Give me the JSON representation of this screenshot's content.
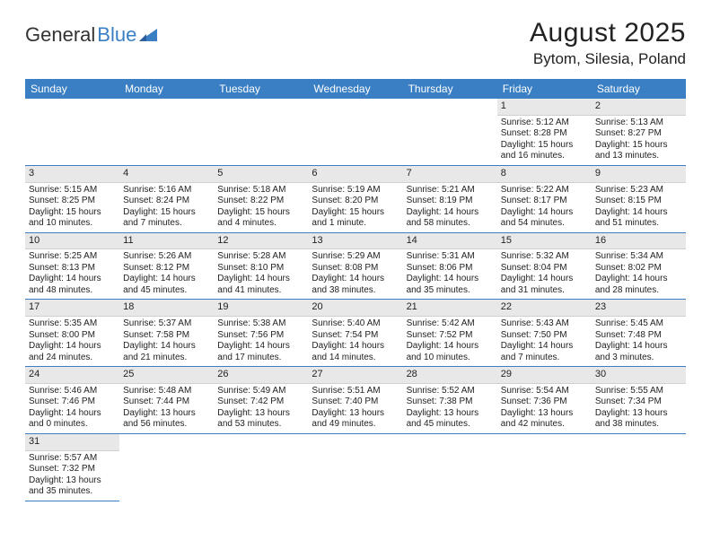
{
  "logo": {
    "general": "General",
    "blue": "Blue"
  },
  "title": "August 2025",
  "subtitle": "Bytom, Silesia, Poland",
  "dayNames": [
    "Sunday",
    "Monday",
    "Tuesday",
    "Wednesday",
    "Thursday",
    "Friday",
    "Saturday"
  ],
  "colors": {
    "headerBar": "#3a7fc4",
    "daynumBg": "#e8e8e8",
    "rowBorder": "#3a7fc4"
  },
  "weeks": [
    [
      null,
      null,
      null,
      null,
      null,
      {
        "n": "1",
        "sr": "Sunrise: 5:12 AM",
        "ss": "Sunset: 8:28 PM",
        "d1": "Daylight: 15 hours",
        "d2": "and 16 minutes."
      },
      {
        "n": "2",
        "sr": "Sunrise: 5:13 AM",
        "ss": "Sunset: 8:27 PM",
        "d1": "Daylight: 15 hours",
        "d2": "and 13 minutes."
      }
    ],
    [
      {
        "n": "3",
        "sr": "Sunrise: 5:15 AM",
        "ss": "Sunset: 8:25 PM",
        "d1": "Daylight: 15 hours",
        "d2": "and 10 minutes."
      },
      {
        "n": "4",
        "sr": "Sunrise: 5:16 AM",
        "ss": "Sunset: 8:24 PM",
        "d1": "Daylight: 15 hours",
        "d2": "and 7 minutes."
      },
      {
        "n": "5",
        "sr": "Sunrise: 5:18 AM",
        "ss": "Sunset: 8:22 PM",
        "d1": "Daylight: 15 hours",
        "d2": "and 4 minutes."
      },
      {
        "n": "6",
        "sr": "Sunrise: 5:19 AM",
        "ss": "Sunset: 8:20 PM",
        "d1": "Daylight: 15 hours",
        "d2": "and 1 minute."
      },
      {
        "n": "7",
        "sr": "Sunrise: 5:21 AM",
        "ss": "Sunset: 8:19 PM",
        "d1": "Daylight: 14 hours",
        "d2": "and 58 minutes."
      },
      {
        "n": "8",
        "sr": "Sunrise: 5:22 AM",
        "ss": "Sunset: 8:17 PM",
        "d1": "Daylight: 14 hours",
        "d2": "and 54 minutes."
      },
      {
        "n": "9",
        "sr": "Sunrise: 5:23 AM",
        "ss": "Sunset: 8:15 PM",
        "d1": "Daylight: 14 hours",
        "d2": "and 51 minutes."
      }
    ],
    [
      {
        "n": "10",
        "sr": "Sunrise: 5:25 AM",
        "ss": "Sunset: 8:13 PM",
        "d1": "Daylight: 14 hours",
        "d2": "and 48 minutes."
      },
      {
        "n": "11",
        "sr": "Sunrise: 5:26 AM",
        "ss": "Sunset: 8:12 PM",
        "d1": "Daylight: 14 hours",
        "d2": "and 45 minutes."
      },
      {
        "n": "12",
        "sr": "Sunrise: 5:28 AM",
        "ss": "Sunset: 8:10 PM",
        "d1": "Daylight: 14 hours",
        "d2": "and 41 minutes."
      },
      {
        "n": "13",
        "sr": "Sunrise: 5:29 AM",
        "ss": "Sunset: 8:08 PM",
        "d1": "Daylight: 14 hours",
        "d2": "and 38 minutes."
      },
      {
        "n": "14",
        "sr": "Sunrise: 5:31 AM",
        "ss": "Sunset: 8:06 PM",
        "d1": "Daylight: 14 hours",
        "d2": "and 35 minutes."
      },
      {
        "n": "15",
        "sr": "Sunrise: 5:32 AM",
        "ss": "Sunset: 8:04 PM",
        "d1": "Daylight: 14 hours",
        "d2": "and 31 minutes."
      },
      {
        "n": "16",
        "sr": "Sunrise: 5:34 AM",
        "ss": "Sunset: 8:02 PM",
        "d1": "Daylight: 14 hours",
        "d2": "and 28 minutes."
      }
    ],
    [
      {
        "n": "17",
        "sr": "Sunrise: 5:35 AM",
        "ss": "Sunset: 8:00 PM",
        "d1": "Daylight: 14 hours",
        "d2": "and 24 minutes."
      },
      {
        "n": "18",
        "sr": "Sunrise: 5:37 AM",
        "ss": "Sunset: 7:58 PM",
        "d1": "Daylight: 14 hours",
        "d2": "and 21 minutes."
      },
      {
        "n": "19",
        "sr": "Sunrise: 5:38 AM",
        "ss": "Sunset: 7:56 PM",
        "d1": "Daylight: 14 hours",
        "d2": "and 17 minutes."
      },
      {
        "n": "20",
        "sr": "Sunrise: 5:40 AM",
        "ss": "Sunset: 7:54 PM",
        "d1": "Daylight: 14 hours",
        "d2": "and 14 minutes."
      },
      {
        "n": "21",
        "sr": "Sunrise: 5:42 AM",
        "ss": "Sunset: 7:52 PM",
        "d1": "Daylight: 14 hours",
        "d2": "and 10 minutes."
      },
      {
        "n": "22",
        "sr": "Sunrise: 5:43 AM",
        "ss": "Sunset: 7:50 PM",
        "d1": "Daylight: 14 hours",
        "d2": "and 7 minutes."
      },
      {
        "n": "23",
        "sr": "Sunrise: 5:45 AM",
        "ss": "Sunset: 7:48 PM",
        "d1": "Daylight: 14 hours",
        "d2": "and 3 minutes."
      }
    ],
    [
      {
        "n": "24",
        "sr": "Sunrise: 5:46 AM",
        "ss": "Sunset: 7:46 PM",
        "d1": "Daylight: 14 hours",
        "d2": "and 0 minutes."
      },
      {
        "n": "25",
        "sr": "Sunrise: 5:48 AM",
        "ss": "Sunset: 7:44 PM",
        "d1": "Daylight: 13 hours",
        "d2": "and 56 minutes."
      },
      {
        "n": "26",
        "sr": "Sunrise: 5:49 AM",
        "ss": "Sunset: 7:42 PM",
        "d1": "Daylight: 13 hours",
        "d2": "and 53 minutes."
      },
      {
        "n": "27",
        "sr": "Sunrise: 5:51 AM",
        "ss": "Sunset: 7:40 PM",
        "d1": "Daylight: 13 hours",
        "d2": "and 49 minutes."
      },
      {
        "n": "28",
        "sr": "Sunrise: 5:52 AM",
        "ss": "Sunset: 7:38 PM",
        "d1": "Daylight: 13 hours",
        "d2": "and 45 minutes."
      },
      {
        "n": "29",
        "sr": "Sunrise: 5:54 AM",
        "ss": "Sunset: 7:36 PM",
        "d1": "Daylight: 13 hours",
        "d2": "and 42 minutes."
      },
      {
        "n": "30",
        "sr": "Sunrise: 5:55 AM",
        "ss": "Sunset: 7:34 PM",
        "d1": "Daylight: 13 hours",
        "d2": "and 38 minutes."
      }
    ],
    [
      {
        "n": "31",
        "sr": "Sunrise: 5:57 AM",
        "ss": "Sunset: 7:32 PM",
        "d1": "Daylight: 13 hours",
        "d2": "and 35 minutes."
      },
      null,
      null,
      null,
      null,
      null,
      null
    ]
  ]
}
